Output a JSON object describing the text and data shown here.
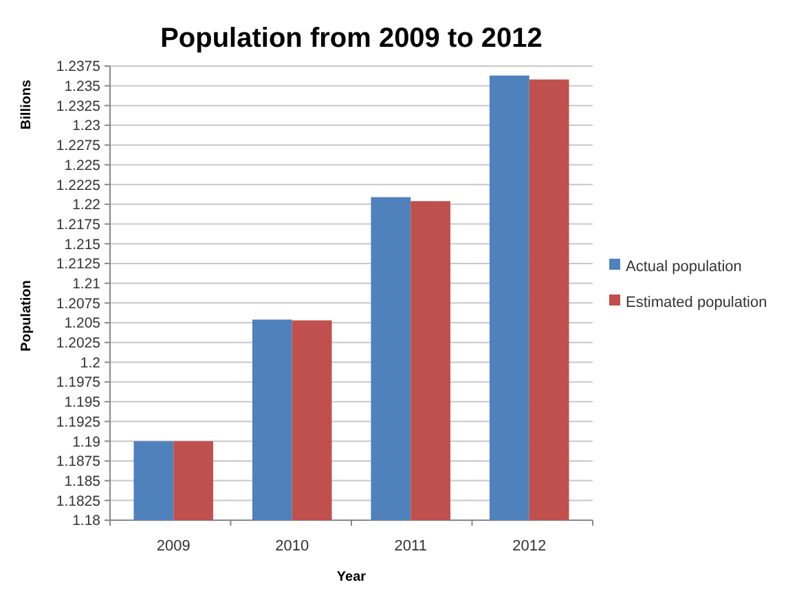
{
  "chart_data": {
    "type": "bar",
    "title": "Population from 2009 to 2012",
    "xlabel": "Year",
    "ylabel": "Population",
    "annotations": [
      "Billions"
    ],
    "categories": [
      "2009",
      "2010",
      "2011",
      "2012"
    ],
    "series": [
      {
        "name": "Actual population",
        "color": "#4f81bd",
        "values": [
          1.19,
          1.2054,
          1.2209,
          1.2363
        ]
      },
      {
        "name": "Estimated population",
        "color": "#c0504d",
        "values": [
          1.19,
          1.2053,
          1.2204,
          1.2358
        ]
      }
    ],
    "ylim": [
      1.18,
      1.2375
    ],
    "yticks": [
      1.18,
      1.1825,
      1.185,
      1.1875,
      1.19,
      1.1925,
      1.195,
      1.1975,
      1.2,
      1.2025,
      1.205,
      1.2075,
      1.21,
      1.2125,
      1.215,
      1.2175,
      1.22,
      1.2225,
      1.225,
      1.2275,
      1.23,
      1.2325,
      1.235,
      1.2375
    ],
    "grid": "y",
    "legend": "right"
  }
}
